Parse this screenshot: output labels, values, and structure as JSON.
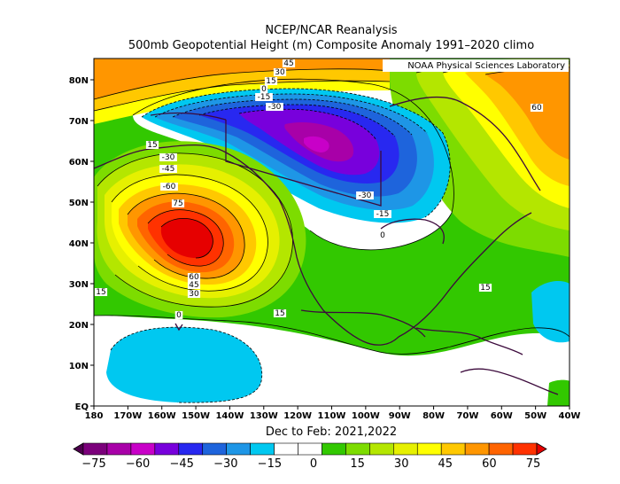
{
  "title_line1": "NCEP/NCAR Reanalysis",
  "title_line2": "500mb Geopotential Height (m) Composite Anomaly 1991–2020 climo",
  "credit": "NOAA Physical Sciences Laboratory",
  "period": "Dec to Feb: 2021,2022",
  "lat_labels": [
    "EQ",
    "10N",
    "20N",
    "30N",
    "40N",
    "50N",
    "60N",
    "70N",
    "80N"
  ],
  "lon_labels": [
    "180",
    "170W",
    "160W",
    "150W",
    "140W",
    "130W",
    "120W",
    "110W",
    "100W",
    "90W",
    "80W",
    "70W",
    "60W",
    "50W",
    "40W"
  ],
  "contour_labels": [
    "45",
    "30",
    "15",
    "0",
    "-15",
    "-30",
    "15",
    "-30",
    "-45",
    "-60",
    "75",
    "-30",
    "-15",
    "0",
    "60",
    "60",
    "45",
    "30",
    "15",
    "15",
    "15",
    "0"
  ],
  "colorbar": {
    "labels": [
      "−75",
      "−60",
      "−45",
      "−30",
      "−15",
      "0",
      "15",
      "30",
      "45",
      "60",
      "75"
    ],
    "colors": [
      "#4d004d",
      "#7b007b",
      "#a800a8",
      "#c800c8",
      "#7800dc",
      "#2828f0",
      "#1e64dc",
      "#1e96e6",
      "#00c8f0",
      "#ffffff",
      "#ffffff",
      "#32c800",
      "#7ddc00",
      "#b4e600",
      "#e6f000",
      "#ffff00",
      "#ffc800",
      "#ff9600",
      "#ff6400",
      "#ff3200",
      "#e60000"
    ]
  }
}
